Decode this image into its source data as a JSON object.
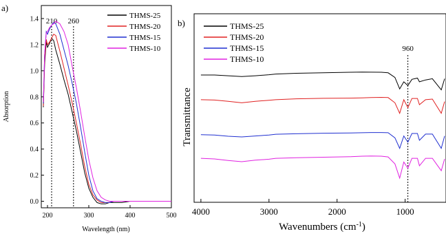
{
  "chart_data": [
    {
      "panel": "a)",
      "type": "line",
      "title": "",
      "xlabel": "Wavelength (nm)",
      "ylabel": "Absorption",
      "xlim": [
        185,
        500
      ],
      "ylim": [
        -0.05,
        1.5
      ],
      "xticks": [
        200,
        300,
        400,
        500
      ],
      "yticks": [
        0.0,
        0.2,
        0.4,
        0.6,
        0.8,
        1.0,
        1.2,
        1.4
      ],
      "yticklabels": [
        "0.0",
        "0.2",
        "0.4",
        "0.6",
        "0.8",
        "1.0",
        "1.2",
        "1.4"
      ],
      "legend_position": "top-right",
      "annotations": [
        {
          "label": "210",
          "x": 210
        },
        {
          "label": "260",
          "x": 263
        }
      ],
      "series": [
        {
          "name": "THMS-25",
          "color": "#000000",
          "x": [
            190,
            193,
            197,
            200,
            205,
            210,
            215,
            220,
            230,
            240,
            250,
            260,
            270,
            280,
            290,
            300,
            310,
            320,
            330,
            340,
            350,
            360,
            380,
            400,
            450,
            500
          ],
          "y": [
            0.72,
            1.05,
            1.22,
            1.18,
            1.21,
            1.25,
            1.23,
            1.16,
            1.05,
            0.93,
            0.82,
            0.68,
            0.54,
            0.38,
            0.22,
            0.1,
            0.03,
            -0.01,
            -0.02,
            -0.02,
            -0.01,
            -0.01,
            -0.01,
            0.0,
            0.0,
            0.0
          ]
        },
        {
          "name": "THMS-20",
          "color": "#e02020",
          "x": [
            190,
            193,
            197,
            200,
            205,
            210,
            215,
            220,
            230,
            240,
            250,
            260,
            270,
            280,
            290,
            300,
            310,
            320,
            330,
            340,
            350,
            360,
            380,
            400,
            450,
            500
          ],
          "y": [
            0.73,
            1.08,
            1.24,
            1.2,
            1.22,
            1.25,
            1.28,
            1.27,
            1.15,
            1.02,
            0.89,
            0.75,
            0.6,
            0.44,
            0.27,
            0.13,
            0.05,
            0.01,
            -0.01,
            -0.01,
            -0.01,
            0.0,
            0.0,
            0.0,
            0.0,
            0.0
          ]
        },
        {
          "name": "THMS-15",
          "color": "#1f2fd0",
          "x": [
            190,
            193,
            197,
            200,
            205,
            210,
            215,
            220,
            230,
            240,
            250,
            260,
            270,
            280,
            290,
            300,
            310,
            320,
            330,
            340,
            350,
            360,
            380,
            400,
            450,
            500
          ],
          "y": [
            0.75,
            1.12,
            1.3,
            1.28,
            1.32,
            1.35,
            1.37,
            1.36,
            1.28,
            1.16,
            1.04,
            0.9,
            0.75,
            0.57,
            0.38,
            0.2,
            0.08,
            0.02,
            0.0,
            -0.01,
            -0.01,
            0.0,
            0.0,
            0.0,
            0.0,
            0.0
          ]
        },
        {
          "name": "THMS-10",
          "color": "#e020e0",
          "x": [
            190,
            193,
            197,
            200,
            205,
            210,
            215,
            220,
            230,
            240,
            250,
            260,
            270,
            280,
            290,
            300,
            310,
            320,
            330,
            340,
            350,
            360,
            380,
            400,
            450,
            500
          ],
          "y": [
            0.76,
            1.12,
            1.29,
            1.3,
            1.33,
            1.35,
            1.36,
            1.38,
            1.36,
            1.3,
            1.2,
            1.03,
            0.87,
            0.69,
            0.5,
            0.32,
            0.18,
            0.08,
            0.03,
            0.01,
            0.0,
            0.0,
            0.0,
            0.0,
            0.0,
            0.0
          ]
        }
      ]
    },
    {
      "panel": "b)",
      "type": "line",
      "title": "",
      "xlabel_main": "Wavenumbers (cm",
      "xlabel_sup": "-1",
      "xlabel_close": ")",
      "ylabel": "Transmittance",
      "xlim": [
        4100,
        400
      ],
      "xticks": [
        4000,
        3000,
        2000,
        1000
      ],
      "legend_position": "top-left",
      "annotations": [
        {
          "label": "960",
          "x": 960
        }
      ],
      "series": [
        {
          "name": "THMS-25",
          "color": "#000000",
          "offset": 3,
          "x": [
            4000,
            3800,
            3600,
            3400,
            3200,
            3000,
            2900,
            2600,
            2200,
            1800,
            1630,
            1500,
            1350,
            1250,
            1150,
            1080,
            1020,
            960,
            900,
            820,
            790,
            700,
            600,
            470,
            420
          ],
          "y": [
            0.5,
            0.5,
            0.44,
            0.38,
            0.44,
            0.52,
            0.58,
            0.64,
            0.68,
            0.72,
            0.74,
            0.73,
            0.72,
            0.68,
            0.3,
            -0.62,
            -0.05,
            -0.35,
            0.15,
            0.25,
            -0.05,
            0.1,
            0.2,
            -0.7,
            0.2
          ]
        },
        {
          "name": "THMS-20",
          "color": "#e02020",
          "offset": 2,
          "x": [
            4000,
            3800,
            3600,
            3400,
            3200,
            3000,
            2900,
            2600,
            2200,
            1800,
            1630,
            1500,
            1350,
            1250,
            1150,
            1080,
            1020,
            960,
            900,
            820,
            790,
            700,
            600,
            470,
            420
          ],
          "y": [
            0.45,
            0.42,
            0.32,
            0.2,
            0.32,
            0.4,
            0.45,
            0.52,
            0.56,
            0.58,
            0.6,
            0.62,
            0.64,
            0.62,
            0.2,
            -0.65,
            0.45,
            -0.2,
            0.55,
            0.55,
            0.05,
            0.45,
            0.5,
            -0.65,
            0.3
          ]
        },
        {
          "name": "THMS-15",
          "color": "#1f2fd0",
          "offset": 1,
          "x": [
            4000,
            3800,
            3600,
            3400,
            3200,
            3000,
            2900,
            2600,
            2200,
            1800,
            1630,
            1500,
            1350,
            1250,
            1150,
            1080,
            1020,
            960,
            900,
            820,
            790,
            700,
            600,
            470,
            420
          ],
          "y": [
            0.4,
            0.38,
            0.28,
            0.22,
            0.3,
            0.38,
            0.44,
            0.48,
            0.52,
            0.54,
            0.56,
            0.58,
            0.58,
            0.56,
            0.15,
            -0.7,
            0.3,
            -0.2,
            0.5,
            0.5,
            -0.05,
            0.45,
            0.45,
            -0.7,
            0.3
          ]
        },
        {
          "name": "THMS-10",
          "color": "#e020e0",
          "offset": 0,
          "x": [
            4000,
            3800,
            3600,
            3400,
            3200,
            3000,
            2900,
            2600,
            2200,
            1800,
            1630,
            1500,
            1350,
            1250,
            1150,
            1080,
            1020,
            960,
            900,
            820,
            790,
            700,
            600,
            470,
            420
          ],
          "y": [
            0.55,
            0.5,
            0.38,
            0.28,
            0.4,
            0.48,
            0.55,
            0.6,
            0.64,
            0.68,
            0.72,
            0.74,
            0.72,
            0.66,
            0.1,
            -1.05,
            0.25,
            -0.25,
            0.55,
            0.55,
            -0.05,
            0.55,
            0.55,
            -0.45,
            0.5
          ]
        }
      ]
    }
  ]
}
